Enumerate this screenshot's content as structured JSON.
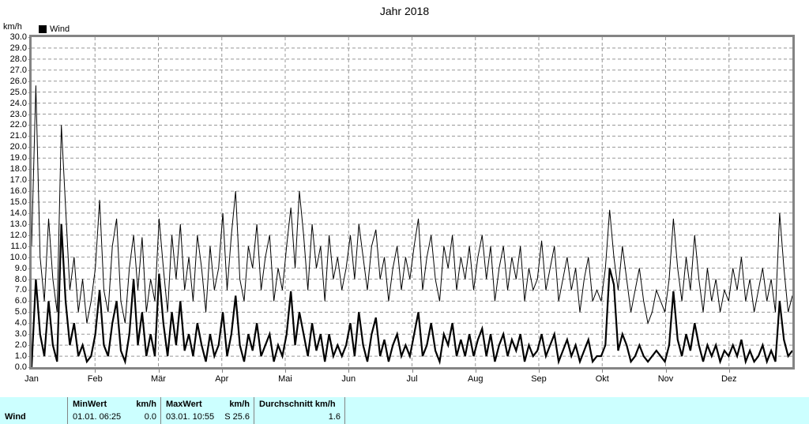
{
  "title": "Jahr 2018",
  "y_axis_unit": "km/h",
  "legend": {
    "label": "Wind",
    "swatch_color": "#000000"
  },
  "colors": {
    "series": "#000000",
    "grid": "#989898",
    "plot_border": "#848484",
    "table_background": "#ccffff",
    "table_divider": "#848484",
    "background": "#ffffff"
  },
  "chart_data": {
    "type": "line",
    "title": "Jahr 2018",
    "ylabel": "km/h",
    "xlabel": "",
    "ylim": [
      0,
      30
    ],
    "y_tick_step": 1.0,
    "grid": "dashed",
    "legend_position": "top-left",
    "legend_entries": [
      "Wind"
    ],
    "y_ticks": [
      "30.0",
      "29.0",
      "28.0",
      "27.0",
      "26.0",
      "25.0",
      "24.0",
      "23.0",
      "22.0",
      "21.0",
      "20.0",
      "19.0",
      "18.0",
      "17.0",
      "16.0",
      "15.0",
      "14.0",
      "13.0",
      "12.0",
      "11.0",
      "10.0",
      "9.0",
      "8.0",
      "7.0",
      "6.0",
      "5.0",
      "4.0",
      "3.0",
      "2.0",
      "1.0",
      "0.0"
    ],
    "x_months": [
      "Jan",
      "Feb",
      "Mär",
      "Apr",
      "Mai",
      "Jun",
      "Jul",
      "Aug",
      "Sep",
      "Okt",
      "Nov",
      "Dez"
    ],
    "series": [
      {
        "name": "wind-peaks-thin-line",
        "stroke_width": 1,
        "values": [
          11,
          25.6,
          10,
          6,
          13.5,
          8,
          5,
          22,
          14.5,
          7,
          10,
          5,
          8,
          4,
          6,
          9,
          15.2,
          7,
          5,
          11,
          13.5,
          6,
          4,
          9,
          12,
          7,
          11.8,
          5,
          8,
          6,
          13.5,
          9,
          5,
          12,
          8,
          13,
          7,
          10,
          6,
          12,
          9,
          5,
          11,
          7,
          9,
          14,
          7,
          12,
          16,
          8,
          6,
          11,
          9,
          13,
          7,
          10,
          12,
          6,
          9,
          7,
          11,
          14.5,
          9,
          16,
          12,
          7,
          13,
          9,
          11,
          6,
          12,
          8,
          10,
          7,
          9,
          12,
          8,
          13,
          10,
          7,
          11,
          12.5,
          8,
          10,
          6,
          9,
          11,
          7,
          10,
          8,
          11,
          13.5,
          7,
          10,
          12,
          8,
          6,
          11,
          9,
          12,
          7,
          10,
          8,
          11,
          7,
          10,
          12,
          8,
          11,
          6,
          9,
          11,
          7,
          10,
          8,
          11,
          6,
          9,
          7,
          8,
          11.5,
          7,
          9,
          11,
          6,
          8,
          10,
          7,
          9,
          5,
          8,
          10,
          6,
          7,
          6,
          9,
          14.3,
          10,
          7,
          11,
          8,
          5,
          7,
          9,
          6,
          4,
          5,
          7,
          6,
          5,
          8,
          13.5,
          9,
          6,
          10,
          7,
          12,
          8,
          5,
          9,
          6,
          8,
          5,
          7,
          6,
          9,
          7,
          10,
          6,
          8,
          5,
          7,
          9,
          6,
          8,
          5,
          14,
          9,
          5,
          6.5
        ]
      },
      {
        "name": "wind-average-thick-line",
        "stroke_width": 2.2,
        "values": [
          0,
          8,
          3,
          1,
          6,
          2,
          0.5,
          13,
          6,
          2,
          4,
          1,
          2,
          0.5,
          1,
          3,
          7,
          2,
          1,
          4,
          6,
          1.5,
          0.5,
          3,
          8,
          2,
          5,
          1,
          3,
          1,
          8.5,
          4,
          1,
          5,
          2,
          6,
          1.5,
          3,
          1,
          4,
          2,
          0.5,
          3,
          1,
          2,
          5,
          1,
          3,
          6.5,
          2,
          0.5,
          3,
          1.5,
          4,
          1,
          2,
          3,
          0.5,
          2,
          1,
          3,
          6.9,
          2,
          5,
          3,
          1,
          4,
          1.5,
          3,
          0.5,
          3,
          1,
          2,
          1,
          2,
          4,
          1,
          5,
          2,
          0.5,
          3,
          4.5,
          1,
          2.5,
          0.5,
          2,
          3,
          1,
          2,
          1,
          3,
          5,
          1,
          2,
          4,
          1.5,
          0.5,
          3,
          2,
          4,
          1,
          2.5,
          1,
          3,
          1,
          2.5,
          3.5,
          1,
          3,
          0.5,
          2,
          3,
          1,
          2.5,
          1.5,
          3,
          0.5,
          2,
          1,
          1.5,
          3,
          1,
          2,
          3,
          0.5,
          1.5,
          2.5,
          1,
          2,
          0.5,
          1.5,
          2.5,
          0.5,
          1,
          1,
          2,
          9,
          7.5,
          1.5,
          3,
          2,
          0.5,
          1,
          2,
          1,
          0.5,
          1,
          1.5,
          1,
          0.5,
          2,
          6.9,
          2.5,
          1,
          3,
          1.5,
          4,
          2,
          0.5,
          2,
          1,
          2,
          0.5,
          1.5,
          1,
          2,
          1,
          2.5,
          0.5,
          1.5,
          0.5,
          1,
          2,
          0.5,
          1.5,
          0.5,
          6,
          2.5,
          1,
          1.5
        ]
      }
    ]
  },
  "summary_table": {
    "row_label": "Wind",
    "min": {
      "header": "MinWert",
      "unit": "km/h",
      "datetime": "01.01.  06:25",
      "value": "0.0"
    },
    "max": {
      "header": "MaxWert",
      "unit": "km/h",
      "datetime": "03.01.  10:55",
      "value": "S 25.6"
    },
    "avg": {
      "header": "Durchschnitt km/h",
      "value": "1.6"
    }
  }
}
